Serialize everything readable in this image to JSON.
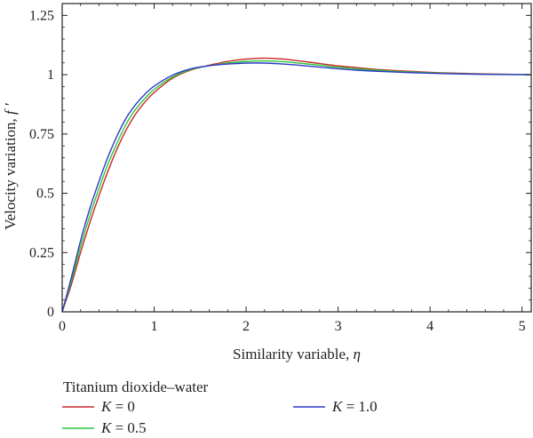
{
  "chart_data": {
    "type": "line",
    "xlabel": "Similarity variable, ",
    "xlabel_symbol": "η",
    "ylabel": "Velocity variation, ",
    "ylabel_symbol": "f ′",
    "xlim": [
      0,
      5.1
    ],
    "ylim": [
      0,
      1.3
    ],
    "x_ticks": [
      0,
      1,
      2,
      3,
      4,
      5
    ],
    "x_tick_labels": [
      "0",
      "1",
      "2",
      "3",
      "4",
      "5"
    ],
    "y_ticks": [
      0,
      0.25,
      0.5,
      0.75,
      1,
      1.25
    ],
    "y_tick_labels": [
      "0",
      "0.25",
      "0.5",
      "0.75",
      "1",
      "1.25"
    ],
    "grid": false,
    "legend": {
      "title": "Titanium dioxide–water",
      "placement": "below"
    },
    "x": [
      0,
      0.1,
      0.2,
      0.3,
      0.4,
      0.5,
      0.6,
      0.7,
      0.8,
      0.9,
      1.0,
      1.2,
      1.4,
      1.6,
      1.7,
      1.8,
      2.0,
      2.2,
      2.4,
      2.6,
      2.8,
      3.0,
      3.2,
      3.5,
      4.0,
      4.5,
      5.0,
      5.1
    ],
    "series": [
      {
        "name_symbol": "K",
        "name_value": " = 0",
        "color": "#c62828",
        "values": [
          0,
          0.115,
          0.25,
          0.375,
          0.49,
          0.595,
          0.69,
          0.77,
          0.835,
          0.885,
          0.925,
          0.985,
          1.02,
          1.04,
          1.048,
          1.056,
          1.066,
          1.07,
          1.066,
          1.057,
          1.047,
          1.037,
          1.03,
          1.02,
          1.01,
          1.004,
          1.001,
          1.0
        ]
      },
      {
        "name_symbol": "K",
        "name_value": " = 0.5",
        "color": "#2cc63a",
        "values": [
          0,
          0.13,
          0.275,
          0.405,
          0.52,
          0.625,
          0.715,
          0.795,
          0.855,
          0.9,
          0.938,
          0.99,
          1.022,
          1.038,
          1.044,
          1.049,
          1.056,
          1.058,
          1.055,
          1.048,
          1.04,
          1.031,
          1.025,
          1.017,
          1.008,
          1.003,
          1.001,
          1.0
        ]
      },
      {
        "name_symbol": "K",
        "name_value": " = 1.0",
        "color": "#3038c8",
        "values": [
          0,
          0.145,
          0.3,
          0.435,
          0.55,
          0.655,
          0.745,
          0.82,
          0.875,
          0.918,
          0.952,
          0.998,
          1.025,
          1.038,
          1.042,
          1.045,
          1.049,
          1.049,
          1.045,
          1.039,
          1.032,
          1.025,
          1.019,
          1.013,
          1.006,
          1.002,
          1.0,
          1.0
        ]
      }
    ]
  }
}
